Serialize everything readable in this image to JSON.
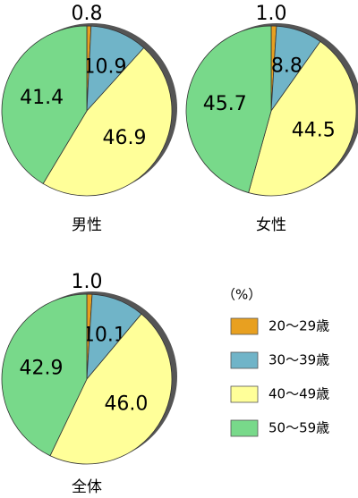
{
  "legend": {
    "title": "（%）",
    "categories": [
      "20～29歳",
      "30～39歳",
      "40～49歳",
      "50～59歳"
    ],
    "colors": [
      "#e8a020",
      "#70b4c8",
      "#ffff99",
      "#78d98a"
    ]
  },
  "chart_data": [
    {
      "type": "pie",
      "title": "男性",
      "values": [
        0.8,
        10.9,
        46.9,
        41.4
      ],
      "value_labels": [
        "0.8",
        "10.9",
        "46.9",
        "41.4"
      ]
    },
    {
      "type": "pie",
      "title": "女性",
      "values": [
        1.0,
        8.8,
        44.5,
        45.7
      ],
      "value_labels": [
        "1.0",
        "8.8",
        "44.5",
        "45.7"
      ]
    },
    {
      "type": "pie",
      "title": "全体",
      "values": [
        1.0,
        10.1,
        46.0,
        42.9
      ],
      "value_labels": [
        "1.0",
        "10.1",
        "46.0",
        "42.9"
      ]
    }
  ]
}
